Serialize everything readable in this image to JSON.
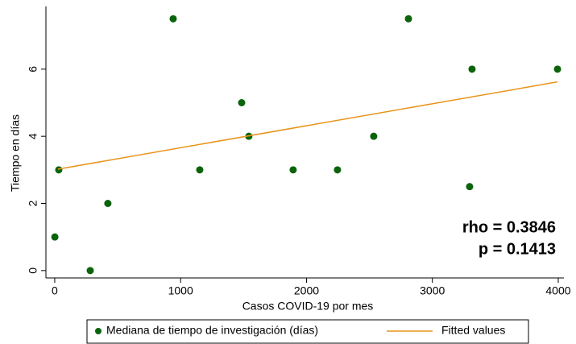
{
  "chart_data": {
    "type": "scatter",
    "x_label": "Casos COVID-19 por mes",
    "y_label": "Tiempo en días",
    "xlim": [
      -70,
      4045
    ],
    "xticks": [
      0,
      1000,
      2000,
      3000,
      4000
    ],
    "ylim": [
      -0.22,
      7.82
    ],
    "yticks": [
      0,
      2,
      4,
      6
    ],
    "grid": false,
    "legend": "bottom",
    "annotations": [
      "rho = 0.3846",
      "p = 0.1413"
    ],
    "series": [
      {
        "name": "Mediana de tiempo de investigación (días)",
        "type": "scatter",
        "color": "#0b640b",
        "x": [
          1,
          32,
          282,
          422,
          941,
          1152,
          1485,
          1542,
          1894,
          2246,
          2534,
          2810,
          3296,
          3315,
          3994
        ],
        "values": [
          1,
          3,
          0,
          2,
          7.5,
          3,
          5,
          4,
          3,
          3,
          4,
          7.5,
          2.5,
          6,
          6
        ]
      },
      {
        "name": "Fitted values",
        "type": "line",
        "color": "#e8941a",
        "x": [
          25,
          3994
        ],
        "values": [
          3.02,
          5.62
        ]
      }
    ]
  }
}
